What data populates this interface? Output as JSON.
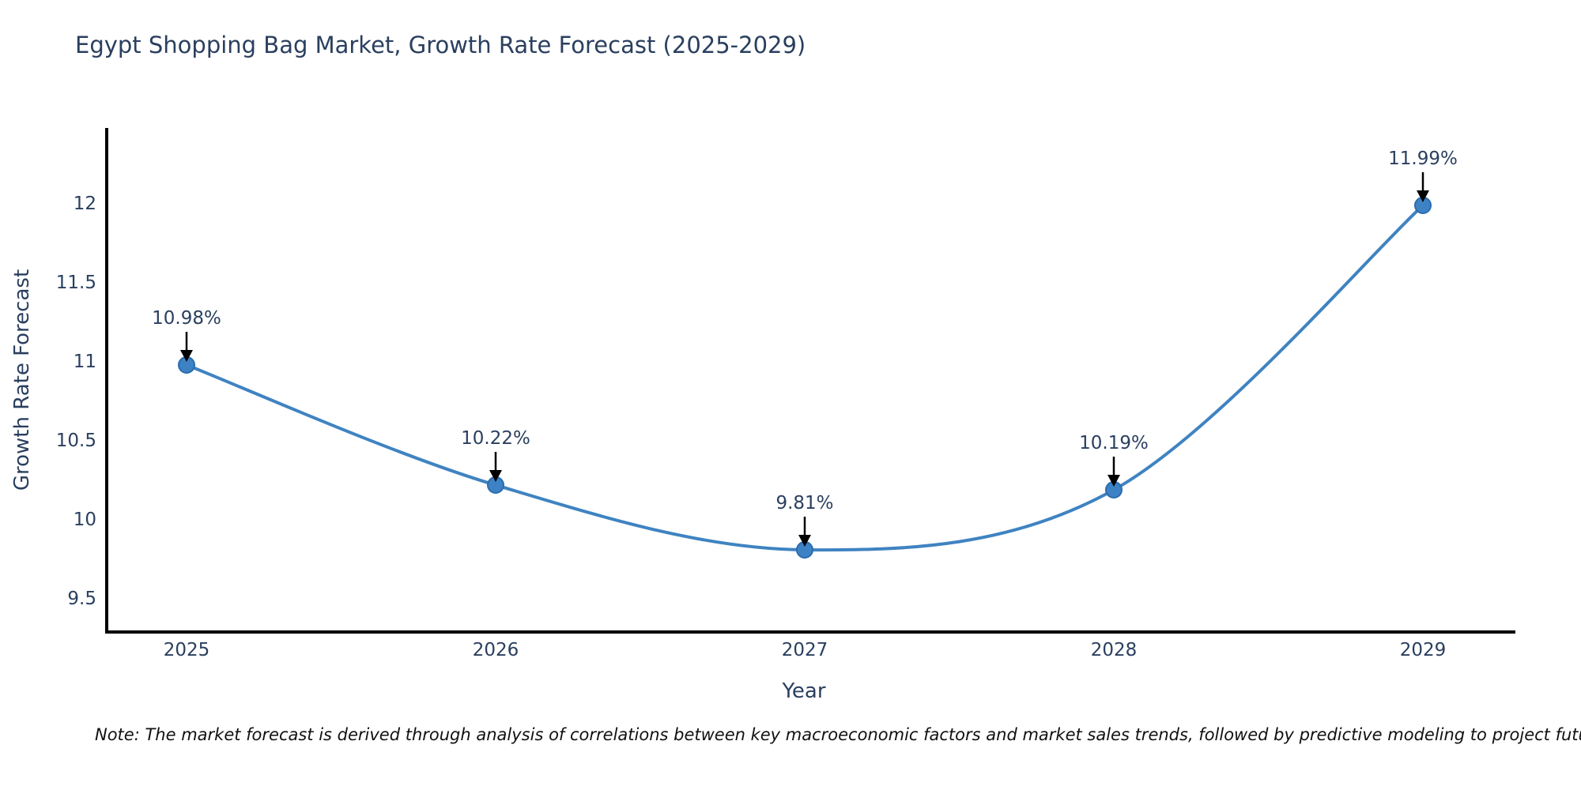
{
  "title": "Egypt Shopping Bag Market, Growth Rate Forecast (2025-2029)",
  "note": "Note: The market forecast is derived through analysis of correlations between key macroeconomic factors and market sales trends, followed by predictive modeling to project future sal",
  "colors": {
    "line": "#3f83c1",
    "marker_fill": "#3d82c4",
    "marker_edge": "#2b6cae",
    "axis": "#000000",
    "arrow": "#000000",
    "text": "#2a3f5f",
    "background": "#ffffff"
  },
  "chart_data": {
    "type": "line",
    "title": "Egypt Shopping Bag Market, Growth Rate Forecast (2025-2029)",
    "categories": [
      "2025",
      "2026",
      "2027",
      "2028",
      "2029"
    ],
    "values": [
      10.98,
      10.22,
      9.81,
      10.19,
      11.99
    ],
    "point_labels": [
      "10.98%",
      "10.22%",
      "9.81%",
      "10.19%",
      "11.99%"
    ],
    "xlabel": "Year",
    "ylabel": "Growth Rate Forecast",
    "yticks": [
      9.5,
      10,
      10.5,
      11,
      11.5,
      12
    ],
    "ylim": [
      9.29,
      12.48
    ],
    "grid": false,
    "legend": false,
    "line_shape": "spline",
    "marker": "circle",
    "annotation_arrows": true
  }
}
